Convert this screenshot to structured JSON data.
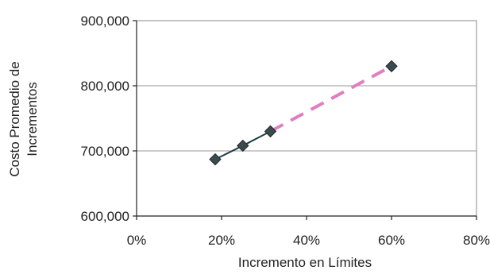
{
  "chart_data": {
    "type": "line",
    "title": "",
    "xlabel": "Incremento en Límites",
    "ylabel_lines": [
      "Costo Promedio de",
      "Incrementos"
    ],
    "xlim": [
      0,
      0.8
    ],
    "ylim": [
      600000,
      900000
    ],
    "x_ticks": [
      0,
      0.2,
      0.4,
      0.6,
      0.8
    ],
    "x_tick_labels": [
      "0%",
      "20%",
      "40%",
      "60%",
      "80%"
    ],
    "y_ticks": [
      600000,
      700000,
      800000,
      900000
    ],
    "y_tick_labels": [
      "600,000",
      "700,000",
      "800,000",
      "900,000"
    ],
    "grid": "horizontal",
    "series": [
      {
        "style": "solid",
        "color": "#1f3d46",
        "x": [
          0.185,
          0.25,
          0.315
        ],
        "y": [
          687000,
          708000,
          730000
        ]
      },
      {
        "style": "dashed",
        "color": "#e07fc0",
        "x": [
          0.315,
          0.6
        ],
        "y": [
          730000,
          830000
        ]
      }
    ],
    "points": {
      "marker": "diamond",
      "color": "#3a4a4d",
      "x": [
        0.185,
        0.25,
        0.315,
        0.6
      ],
      "y": [
        687000,
        708000,
        730000,
        830000
      ]
    }
  }
}
